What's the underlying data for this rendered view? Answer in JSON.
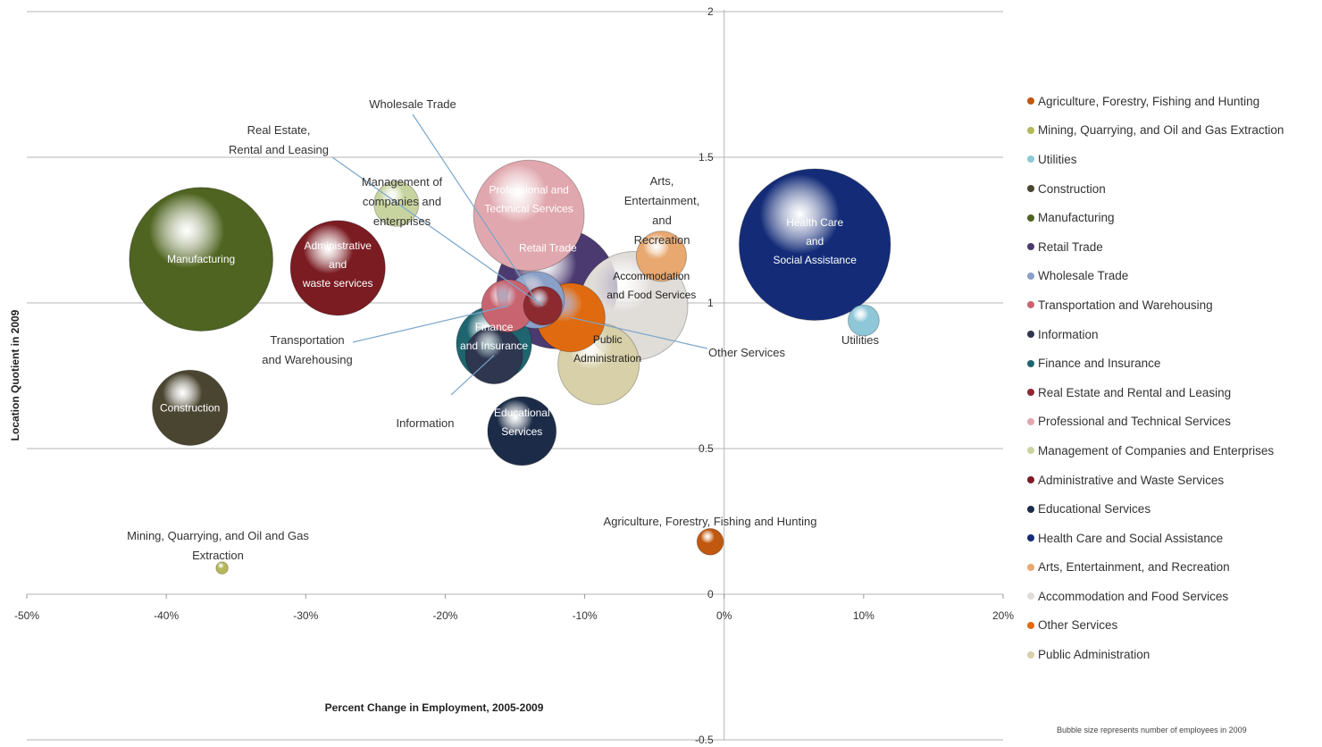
{
  "chart_data": {
    "type": "bubble",
    "xlabel": "Percent Change in Employment, 2005-2009",
    "ylabel": "Location Quotient in 2009",
    "xlim": [
      -50,
      20
    ],
    "ylim": [
      -0.5,
      2
    ],
    "x_ticks": [
      "-50%",
      "-40%",
      "-30%",
      "-20%",
      "-10%",
      "0%",
      "10%",
      "20%"
    ],
    "y_ticks": [
      "-0.5",
      "0",
      "0.5",
      "1",
      "1.5",
      "2"
    ],
    "grid": "horizontal",
    "legend_position": "right",
    "note": "Bubble size represents number of employees in 2009",
    "series": [
      {
        "name": "Agriculture, Forestry, Fishing and Hunting",
        "x": -1,
        "y": 0.18,
        "size": 1,
        "color": "#c0580f",
        "label": "Agriculture, Forestry, Fishing and Hunting"
      },
      {
        "name": "Mining, Quarrying, and Oil and Gas Extraction",
        "x": -36,
        "y": 0.09,
        "size": 0.1,
        "color": "#b5b85a",
        "label": "Mining, Quarrying, and Oil and Gas Extraction"
      },
      {
        "name": "Utilities",
        "x": 10,
        "y": 0.94,
        "size": 1.5,
        "color": "#8ec7d8",
        "label": "Utilities"
      },
      {
        "name": "Construction",
        "x": -38.3,
        "y": 0.64,
        "size": 11,
        "color": "#4a4530",
        "label": "Construction"
      },
      {
        "name": "Manufacturing",
        "x": -37.5,
        "y": 1.15,
        "size": 43,
        "color": "#4f6420",
        "label": "Manufacturing"
      },
      {
        "name": "Retail Trade",
        "x": -12,
        "y": 1.05,
        "size": 30,
        "color": "#4b3a70",
        "label": "Retail Trade"
      },
      {
        "name": "Wholesale Trade",
        "x": -13.5,
        "y": 1.01,
        "size": 6,
        "color": "#8aa0c8",
        "label": "Wholesale Trade"
      },
      {
        "name": "Transportation and Warehousing",
        "x": -15.5,
        "y": 0.99,
        "size": 5,
        "color": "#c86470",
        "label": "Transportation and Warehousing"
      },
      {
        "name": "Information",
        "x": -16.5,
        "y": 0.82,
        "size": 6,
        "color": "#2e3650",
        "label": "Information"
      },
      {
        "name": "Finance and Insurance",
        "x": -16.5,
        "y": 0.86,
        "size": 11,
        "color": "#1f6570",
        "label": "Finance and Insurance"
      },
      {
        "name": "Real Estate and Rental and Leasing",
        "x": -13,
        "y": 0.99,
        "size": 2.5,
        "color": "#8c2a30",
        "label": "Real Estate, Rental and Leasing"
      },
      {
        "name": "Professional and Technical Services",
        "x": -14,
        "y": 1.3,
        "size": 25,
        "color": "#e0a8ae",
        "label": "Professional and Technical Services"
      },
      {
        "name": "Management of Companies and Enterprises",
        "x": -23.5,
        "y": 1.34,
        "size": 3.5,
        "color": "#c8d4a0",
        "label": "Management of companies and enterprises"
      },
      {
        "name": "Administrative and Waste Services",
        "x": -27.7,
        "y": 1.12,
        "size": 18,
        "color": "#7a1c22",
        "label": "Administrative and waste services"
      },
      {
        "name": "Educational Services",
        "x": -14.5,
        "y": 0.56,
        "size": 9,
        "color": "#1c2c48",
        "label": "Educational Services"
      },
      {
        "name": "Health Care and Social Assistance",
        "x": 6.5,
        "y": 1.2,
        "size": 48,
        "color": "#142c78",
        "label": "Health Care and Social Assistance"
      },
      {
        "name": "Arts, Entertainment, and Recreation",
        "x": -4.5,
        "y": 1.16,
        "size": 4.5,
        "color": "#e8a870",
        "label": "Arts, Entertainment, and Recreation"
      },
      {
        "name": "Accommodation and Food Services",
        "x": -6.5,
        "y": 0.99,
        "size": 24,
        "color": "#e0dcd8",
        "label": "Accommodation and Food Services"
      },
      {
        "name": "Other Services",
        "x": -11,
        "y": 0.95,
        "size": 9,
        "color": "#e06a10",
        "label": "Other Services"
      },
      {
        "name": "Public Administration",
        "x": -9,
        "y": 0.79,
        "size": 13,
        "color": "#d8d0a8",
        "label": "Public Administration"
      }
    ]
  }
}
